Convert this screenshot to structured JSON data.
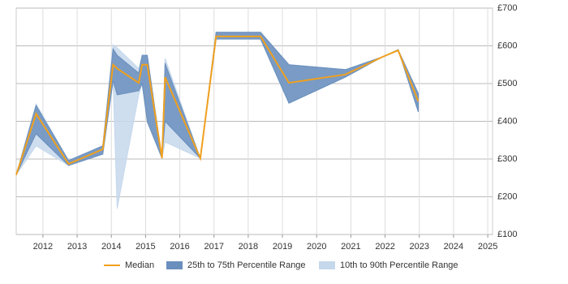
{
  "chart_data": {
    "type": "band-line",
    "x": [
      2011.22,
      2011.8,
      2012.75,
      2013.75,
      2014.05,
      2014.17,
      2014.8,
      2014.9,
      2015.05,
      2015.48,
      2015.57,
      2016.6,
      2017.06,
      2018.36,
      2019.19,
      2020.84,
      2021.93,
      2022.38,
      2022.97
    ],
    "series": [
      {
        "name": "10th to 90th Percentile Range",
        "kind": "band",
        "color": "#c5d8ec",
        "lower": [
          258,
          335,
          283,
          313,
          507,
          169,
          470,
          500,
          399,
          302,
          345,
          302,
          618,
          618,
          448,
          517,
          571,
          590,
          425
        ],
        "upper": [
          258,
          446,
          296,
          335,
          603,
          595,
          540,
          575,
          575,
          302,
          567,
          302,
          636,
          636,
          550,
          537,
          571,
          590,
          474
        ]
      },
      {
        "name": "25th to 75th Percentile Range",
        "kind": "band",
        "color": "#6a8fbd",
        "lower": [
          258,
          367,
          283,
          313,
          507,
          470,
          481,
          500,
          399,
          302,
          400,
          302,
          618,
          618,
          448,
          517,
          571,
          590,
          425
        ],
        "upper": [
          258,
          442,
          296,
          335,
          592,
          575,
          528,
          575,
          575,
          302,
          554,
          302,
          636,
          636,
          550,
          537,
          571,
          590,
          474
        ]
      },
      {
        "name": "Median",
        "kind": "line",
        "color": "#f0a01e",
        "values": [
          258,
          420,
          287,
          326,
          550,
          540,
          502,
          550,
          550,
          302,
          517,
          302,
          625,
          625,
          502,
          524,
          571,
          588,
          453
        ]
      }
    ],
    "xlim": [
      2011.22,
      2025.14
    ],
    "xticks": [
      2012,
      2013,
      2014,
      2015,
      2016,
      2017,
      2018,
      2019,
      2020,
      2021,
      2022,
      2023,
      2024,
      2025
    ],
    "ylim": [
      100,
      700
    ],
    "yticks": [
      {
        "value": 100,
        "label": "£100"
      },
      {
        "value": 200,
        "label": "£200"
      },
      {
        "value": 300,
        "label": "£300"
      },
      {
        "value": 400,
        "label": "£400"
      },
      {
        "value": 500,
        "label": "£500"
      },
      {
        "value": 600,
        "label": "£600"
      },
      {
        "value": 700,
        "label": "£700"
      }
    ],
    "grid": true,
    "legend": "bottom"
  }
}
